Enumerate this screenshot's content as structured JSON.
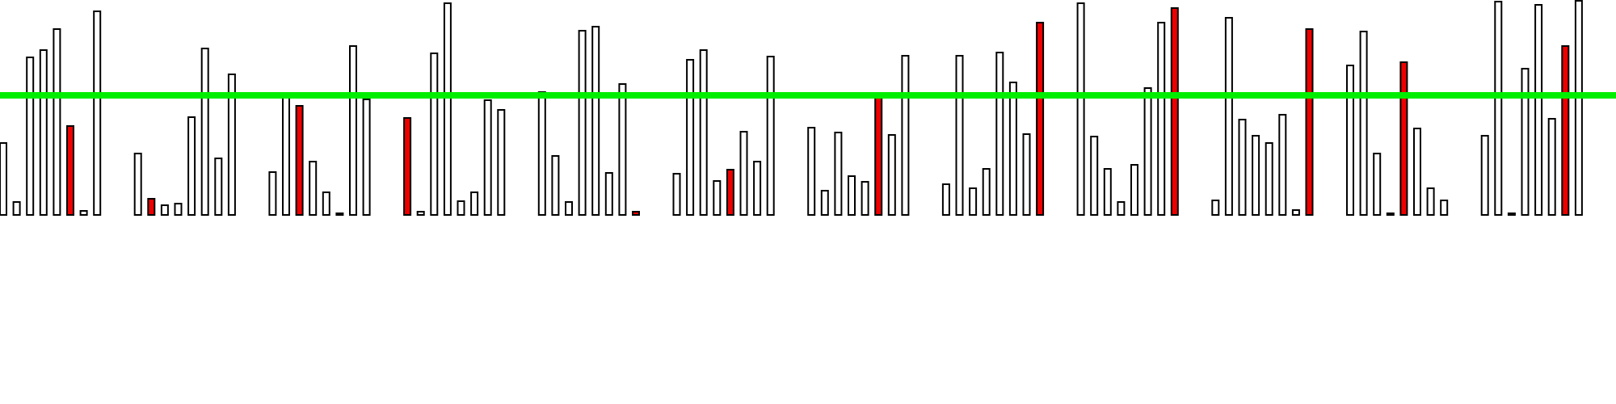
{
  "chart_data": {
    "type": "bar",
    "grid": false,
    "colors": {
      "normal": "#ffffff",
      "highlight": "#ee0000",
      "reference": "#00ee00",
      "outline": "#000000"
    },
    "ylim": [
      0,
      265
    ],
    "reference_line": 148,
    "groups": [
      {
        "values": [
          89,
          16,
          195,
          204,
          230,
          110,
          5,
          252
        ],
        "highlight": 5
      },
      {
        "values": [
          76,
          20,
          12,
          14,
          121,
          206,
          70,
          174
        ],
        "highlight": 1
      },
      {
        "values": [
          53,
          148,
          135,
          66,
          28,
          0,
          209,
          143
        ],
        "highlight": 2
      },
      {
        "values": [
          120,
          4,
          200,
          262,
          17,
          28,
          142,
          130
        ],
        "highlight": 0
      },
      {
        "values": [
          152,
          73,
          16,
          228,
          233,
          52,
          162,
          4
        ],
        "highlight": 7
      },
      {
        "values": [
          51,
          192,
          204,
          42,
          56,
          103,
          66,
          196
        ],
        "highlight": 4
      },
      {
        "values": [
          108,
          30,
          102,
          48,
          41,
          150,
          99,
          197
        ],
        "highlight": 5
      },
      {
        "values": [
          38,
          197,
          33,
          57,
          201,
          164,
          100,
          238
        ],
        "highlight": 7
      },
      {
        "values": [
          262,
          97,
          57,
          16,
          62,
          157,
          238,
          256
        ],
        "highlight": 7
      },
      {
        "values": [
          18,
          244,
          118,
          98,
          89,
          124,
          6,
          230
        ],
        "highlight": 7
      },
      {
        "values": [
          185,
          227,
          76,
          2,
          189,
          107,
          33,
          18
        ],
        "highlight": 4
      },
      {
        "values": [
          98,
          264,
          2,
          181,
          260,
          119,
          209,
          265
        ],
        "highlight": 6
      }
    ]
  }
}
